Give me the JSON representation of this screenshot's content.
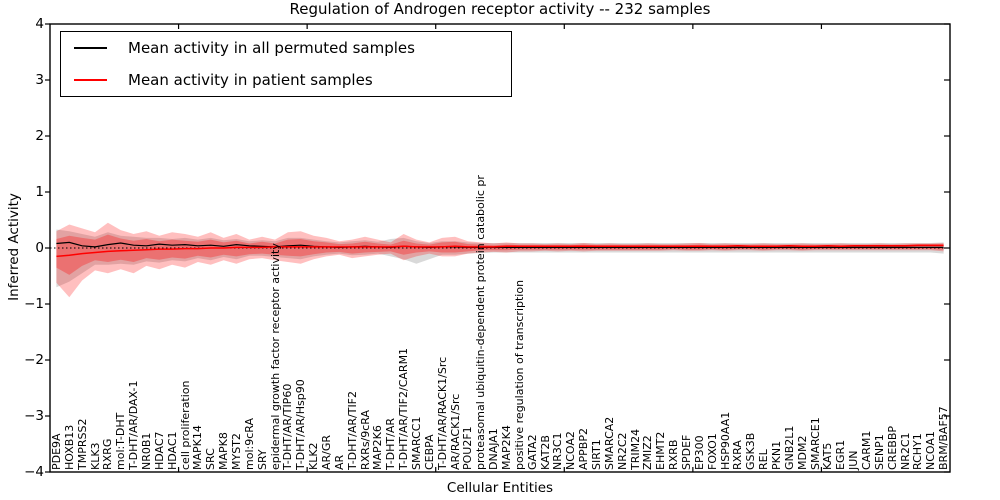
{
  "title": "Regulation of Androgen receptor activity -- 232 samples",
  "axes": {
    "ylabel": "Inferred Activity",
    "xlabel": "Cellular Entities"
  },
  "legend": {
    "position": "upper left",
    "items": [
      {
        "label": "Mean activity in all permuted samples",
        "color": "#000000"
      },
      {
        "label": "Mean activity in patient samples",
        "color": "#ff0000"
      }
    ]
  },
  "chart_data": {
    "type": "line",
    "title": "Regulation of Androgen receptor activity -- 232 samples",
    "xlabel": "Cellular Entities",
    "ylabel": "Inferred Activity",
    "ylim": [
      -4,
      4
    ],
    "yticks": [
      4,
      3,
      2,
      1,
      0,
      -1,
      -2,
      -3,
      -4
    ],
    "grid": false,
    "zero_line_style": "dotted",
    "legend_position": "upper left",
    "categories": [
      "PDE9A",
      "HOXB13",
      "TMPRSS2",
      "KLK3",
      "RXRG",
      "mol:T-DHT",
      "T-DHT/AR/DAX-1",
      "NR0B1",
      "HDAC7",
      "HDAC1",
      "cell proliferation",
      "MAPK14",
      "SRC",
      "MAPK8",
      "MYST2",
      "mol:9cRA",
      "SRY",
      "epidermal growth factor receptor activity",
      "T-DHT/AR/TIP60",
      "T-DHT/AR/Hsp90",
      "KLK2",
      "AR/GR",
      "AR",
      "T-DHT/AR/TIF2",
      "RXRs/9cRA",
      "MAP2K6",
      "T-DHT/AR",
      "T-DHT/AR/TIF2/CARM1",
      "SMARCC1",
      "CEBPA",
      "T-DHT/AR/RACK1/Src",
      "AR/RACK1/Src",
      "POU2F1",
      "proteasomal ubiquitin-dependent protein catabolic pr",
      "DNAJA1",
      "MAP2K4",
      "positive regulation of transcription",
      "GATA2",
      "KAT2B",
      "NR3C1",
      "NCOA2",
      "APPBP2",
      "SIRT1",
      "SMARCA2",
      "NR2C2",
      "TRIM24",
      "ZMIZ2",
      "EHMT2",
      "RXRB",
      "SPDEF",
      "EP300",
      "FOXO1",
      "HSP90AA1",
      "RXRA",
      "GSK3B",
      "REL",
      "PKN1",
      "GNB2L1",
      "MDM2",
      "SMARCE1",
      "KAT5",
      "EGR1",
      "JUN",
      "CARM1",
      "SENP1",
      "CREBBP",
      "NR2C1",
      "RCHY1",
      "NCOA1",
      "BRM/BAF57"
    ],
    "series": [
      {
        "name": "Mean activity in all permuted samples",
        "color": "#000000",
        "values": [
          0.08,
          0.1,
          0.04,
          0.02,
          0.06,
          0.09,
          0.05,
          0.04,
          0.07,
          0.05,
          0.06,
          0.04,
          0.05,
          0.03,
          0.06,
          0.04,
          0.03,
          0.02,
          0.04,
          0.05,
          0.03,
          0.02,
          0.01,
          0.02,
          0.03,
          0.02,
          0.01,
          0.03,
          0.02,
          0.01,
          0.02,
          0.02,
          0.01,
          0.01,
          0.01,
          0.01,
          0.01,
          0.01,
          0.01,
          0.01,
          0.01,
          0.01,
          0.01,
          0.01,
          0.01,
          0.01,
          0.01,
          0.01,
          0.01,
          0.01,
          0.01,
          0.01,
          0.01,
          0.01,
          0.01,
          0.01,
          0.01,
          0.01,
          0.01,
          0.01,
          0.01,
          0.01,
          0.01,
          0.01,
          0.01,
          0.01,
          0.01,
          0.01,
          0.01,
          0.01
        ]
      },
      {
        "name": "Mean activity in patient samples",
        "color": "#ff0000",
        "values": [
          -0.15,
          -0.13,
          -0.1,
          -0.08,
          -0.06,
          -0.05,
          -0.04,
          -0.03,
          -0.02,
          -0.02,
          -0.01,
          -0.01,
          0.0,
          0.0,
          0.01,
          0.01,
          0.01,
          0.02,
          0.02,
          0.02,
          0.02,
          0.02,
          0.02,
          0.02,
          0.02,
          0.02,
          0.02,
          0.03,
          0.02,
          0.02,
          0.02,
          0.03,
          0.02,
          0.02,
          0.02,
          0.03,
          0.03,
          0.03,
          0.03,
          0.03,
          0.03,
          0.03,
          0.03,
          0.03,
          0.03,
          0.03,
          0.03,
          0.03,
          0.03,
          0.03,
          0.03,
          0.03,
          0.03,
          0.04,
          0.03,
          0.03,
          0.03,
          0.04,
          0.03,
          0.03,
          0.04,
          0.03,
          0.04,
          0.04,
          0.04,
          0.04,
          0.04,
          0.05,
          0.05,
          0.05
        ]
      }
    ],
    "bands": [
      {
        "name": "permuted-std",
        "color": "rgba(128,128,128,0.30)",
        "hi": [
          0.33,
          0.3,
          0.25,
          0.2,
          0.28,
          0.22,
          0.2,
          0.18,
          0.18,
          0.16,
          0.18,
          0.15,
          0.18,
          0.14,
          0.16,
          0.12,
          0.14,
          0.12,
          0.18,
          0.18,
          0.15,
          0.12,
          0.1,
          0.12,
          0.14,
          0.11,
          0.16,
          0.18,
          0.12,
          0.09,
          0.12,
          0.12,
          0.1,
          0.09,
          0.09,
          0.09,
          0.09,
          0.09,
          0.09,
          0.09,
          0.09,
          0.09,
          0.09,
          0.09,
          0.09,
          0.09,
          0.09,
          0.09,
          0.09,
          0.09,
          0.09,
          0.09,
          0.09,
          0.09,
          0.09,
          0.09,
          0.09,
          0.09,
          0.09,
          0.09,
          0.09,
          0.09,
          0.09,
          0.09,
          0.09,
          0.09,
          0.09,
          0.09,
          0.09,
          0.1
        ],
        "lo": [
          -0.7,
          -0.6,
          -0.45,
          -0.3,
          -0.3,
          -0.28,
          -0.3,
          -0.24,
          -0.26,
          -0.22,
          -0.24,
          -0.18,
          -0.22,
          -0.16,
          -0.2,
          -0.14,
          -0.14,
          -0.16,
          -0.18,
          -0.2,
          -0.15,
          -0.12,
          -0.1,
          -0.13,
          -0.12,
          -0.1,
          -0.15,
          -0.2,
          -0.28,
          -0.2,
          -0.12,
          -0.12,
          -0.1,
          -0.09,
          -0.08,
          -0.08,
          -0.08,
          -0.08,
          -0.08,
          -0.08,
          -0.08,
          -0.08,
          -0.08,
          -0.08,
          -0.08,
          -0.08,
          -0.08,
          -0.08,
          -0.08,
          -0.08,
          -0.08,
          -0.08,
          -0.08,
          -0.08,
          -0.08,
          -0.08,
          -0.08,
          -0.08,
          -0.08,
          -0.08,
          -0.08,
          -0.08,
          -0.08,
          -0.08,
          -0.08,
          -0.08,
          -0.08,
          -0.08,
          -0.08,
          -0.1
        ]
      },
      {
        "name": "patient-outer",
        "color": "rgba(255,0,0,0.25)",
        "hi": [
          0.3,
          0.42,
          0.35,
          0.28,
          0.45,
          0.32,
          0.25,
          0.3,
          0.22,
          0.28,
          0.25,
          0.2,
          0.28,
          0.18,
          0.25,
          0.15,
          0.2,
          0.15,
          0.28,
          0.3,
          0.22,
          0.18,
          0.12,
          0.15,
          0.2,
          0.15,
          0.1,
          0.25,
          0.15,
          0.1,
          0.18,
          0.2,
          0.12,
          0.1,
          0.08,
          0.1,
          0.08,
          0.08,
          0.07,
          0.08,
          0.07,
          0.09,
          0.07,
          0.08,
          0.07,
          0.07,
          0.08,
          0.07,
          0.07,
          0.08,
          0.09,
          0.07,
          0.08,
          0.07,
          0.07,
          0.08,
          0.07,
          0.07,
          0.08,
          0.07,
          0.07,
          0.08,
          0.07,
          0.07,
          0.08,
          0.07,
          0.08,
          0.08,
          0.08,
          0.09
        ],
        "lo": [
          -0.62,
          -0.88,
          -0.58,
          -0.4,
          -0.45,
          -0.38,
          -0.45,
          -0.32,
          -0.38,
          -0.3,
          -0.35,
          -0.25,
          -0.3,
          -0.22,
          -0.28,
          -0.2,
          -0.18,
          -0.22,
          -0.25,
          -0.28,
          -0.2,
          -0.15,
          -0.12,
          -0.18,
          -0.15,
          -0.12,
          -0.1,
          -0.22,
          -0.15,
          -0.1,
          -0.15,
          -0.15,
          -0.1,
          -0.08,
          -0.07,
          -0.08,
          -0.06,
          -0.06,
          -0.05,
          -0.06,
          -0.05,
          -0.06,
          -0.05,
          -0.05,
          -0.05,
          -0.05,
          -0.05,
          -0.05,
          -0.04,
          -0.05,
          -0.05,
          -0.04,
          -0.05,
          -0.04,
          -0.04,
          -0.05,
          -0.04,
          -0.04,
          -0.05,
          -0.04,
          -0.04,
          -0.04,
          -0.04,
          -0.04,
          -0.04,
          -0.04,
          -0.04,
          -0.04,
          -0.04,
          -0.06
        ]
      },
      {
        "name": "patient-inner",
        "color": "rgba(255,0,0,0.30)",
        "hi": [
          0.16,
          0.22,
          0.18,
          0.15,
          0.24,
          0.17,
          0.13,
          0.16,
          0.12,
          0.15,
          0.13,
          0.11,
          0.15,
          0.1,
          0.13,
          0.08,
          0.11,
          0.08,
          0.15,
          0.16,
          0.12,
          0.1,
          0.07,
          0.08,
          0.11,
          0.08,
          0.06,
          0.13,
          0.08,
          0.06,
          0.1,
          0.11,
          0.07,
          0.06,
          0.05,
          0.06,
          0.05,
          0.05,
          0.05,
          0.05,
          0.05,
          0.06,
          0.05,
          0.05,
          0.05,
          0.05,
          0.05,
          0.05,
          0.05,
          0.05,
          0.06,
          0.05,
          0.05,
          0.05,
          0.05,
          0.05,
          0.05,
          0.05,
          0.05,
          0.05,
          0.05,
          0.05,
          0.05,
          0.05,
          0.05,
          0.05,
          0.05,
          0.05,
          0.05,
          0.06
        ],
        "lo": [
          -0.35,
          -0.48,
          -0.32,
          -0.22,
          -0.25,
          -0.21,
          -0.25,
          -0.18,
          -0.21,
          -0.17,
          -0.19,
          -0.14,
          -0.17,
          -0.12,
          -0.15,
          -0.11,
          -0.1,
          -0.12,
          -0.14,
          -0.15,
          -0.11,
          -0.08,
          -0.07,
          -0.1,
          -0.08,
          -0.07,
          -0.06,
          -0.12,
          -0.08,
          -0.06,
          -0.08,
          -0.08,
          -0.06,
          -0.04,
          -0.04,
          -0.04,
          -0.03,
          -0.03,
          -0.03,
          -0.03,
          -0.03,
          -0.03,
          -0.03,
          -0.03,
          -0.03,
          -0.03,
          -0.03,
          -0.03,
          -0.02,
          -0.03,
          -0.03,
          -0.02,
          -0.03,
          -0.02,
          -0.02,
          -0.03,
          -0.02,
          -0.02,
          -0.03,
          -0.02,
          -0.02,
          -0.02,
          -0.02,
          -0.02,
          -0.02,
          -0.02,
          -0.02,
          -0.02,
          -0.02,
          -0.03
        ]
      }
    ]
  }
}
